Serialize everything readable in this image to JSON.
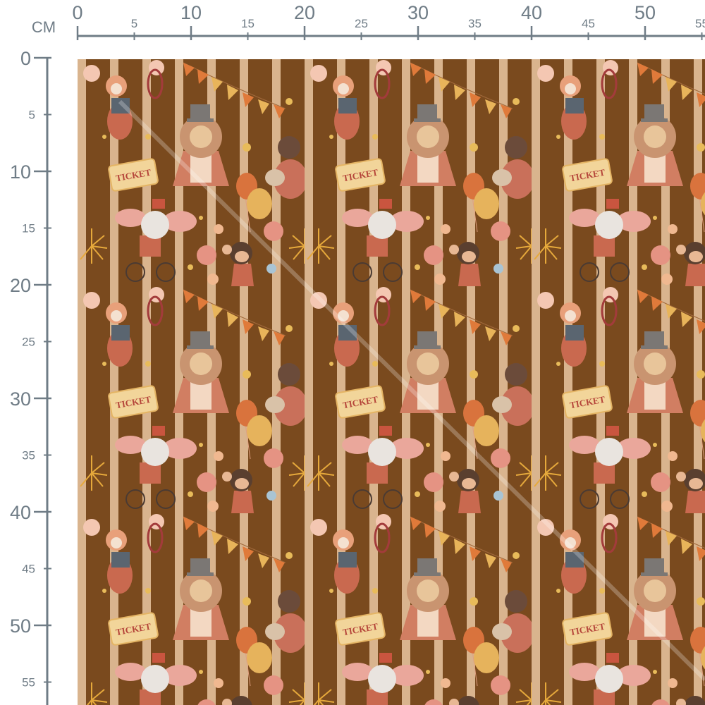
{
  "ruler": {
    "unit_label": "CM",
    "horizontal_major_labels": [
      "0",
      "10",
      "20",
      "30",
      "40",
      "50"
    ],
    "horizontal_minor_labels": [
      "5",
      "15",
      "25",
      "35",
      "45",
      "55"
    ],
    "vertical_major_labels": [
      "0",
      "10",
      "20",
      "30",
      "40",
      "50"
    ],
    "vertical_minor_labels": [
      "5",
      "15",
      "25",
      "35",
      "45",
      "55"
    ],
    "color": "#6f7c86"
  },
  "fabric": {
    "motif_ticket_text": "TICKET",
    "background_color": "#7a4a1e",
    "stripe_color": "#d9b48e",
    "motifs": [
      "tiger-icon",
      "lion-icon",
      "bear-drummer-icon",
      "ticket-icon",
      "balloons-icon",
      "elephant-on-bicycle-icon",
      "monkey-icon",
      "fireworks-icon",
      "bunting-icon",
      "star-icon"
    ]
  }
}
